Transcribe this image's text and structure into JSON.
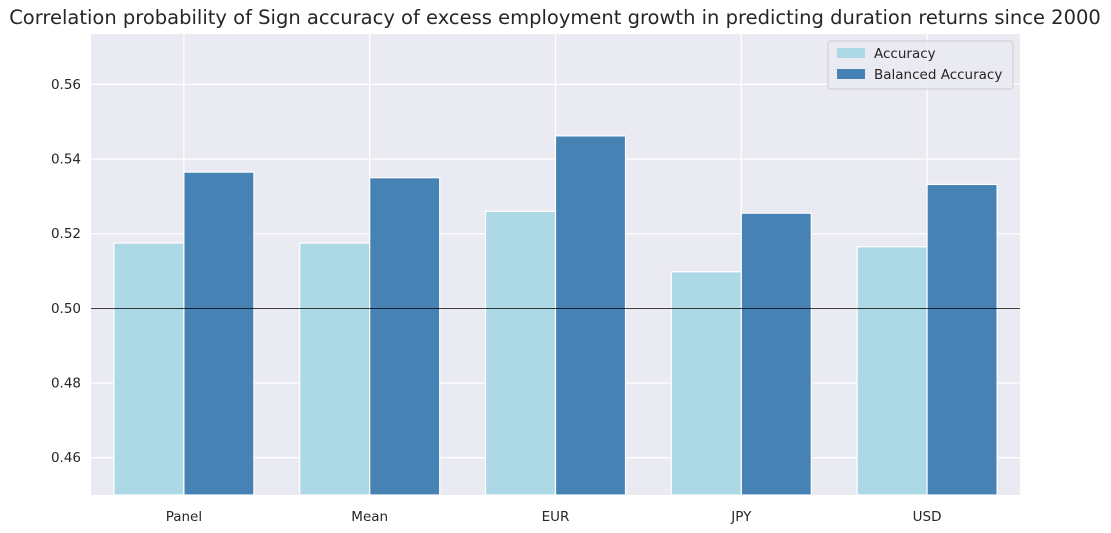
{
  "chart_data": {
    "type": "bar",
    "title": "Correlation probability of Sign accuracy of excess employment growth in predicting duration returns since 2000",
    "xlabel": "",
    "ylabel": "",
    "categories": [
      "Panel",
      "Mean",
      "EUR",
      "JPY",
      "USD"
    ],
    "series": [
      {
        "name": "Accuracy",
        "color": "#add8e6",
        "values": [
          0.5175,
          0.5175,
          0.526,
          0.5098,
          0.5165
        ]
      },
      {
        "name": "Balanced Accuracy",
        "color": "#4682b4",
        "values": [
          0.5365,
          0.535,
          0.5462,
          0.5255,
          0.5332
        ]
      }
    ],
    "ylim": [
      0.45,
      0.5735
    ],
    "yticks": [
      0.46,
      0.48,
      0.5,
      0.52,
      0.54,
      0.56
    ],
    "ytick_labels": [
      "0.46",
      "0.48",
      "0.50",
      "0.52",
      "0.54",
      "0.56"
    ],
    "reference_line": 0.5,
    "grid": true,
    "legend_position": "top-right"
  }
}
